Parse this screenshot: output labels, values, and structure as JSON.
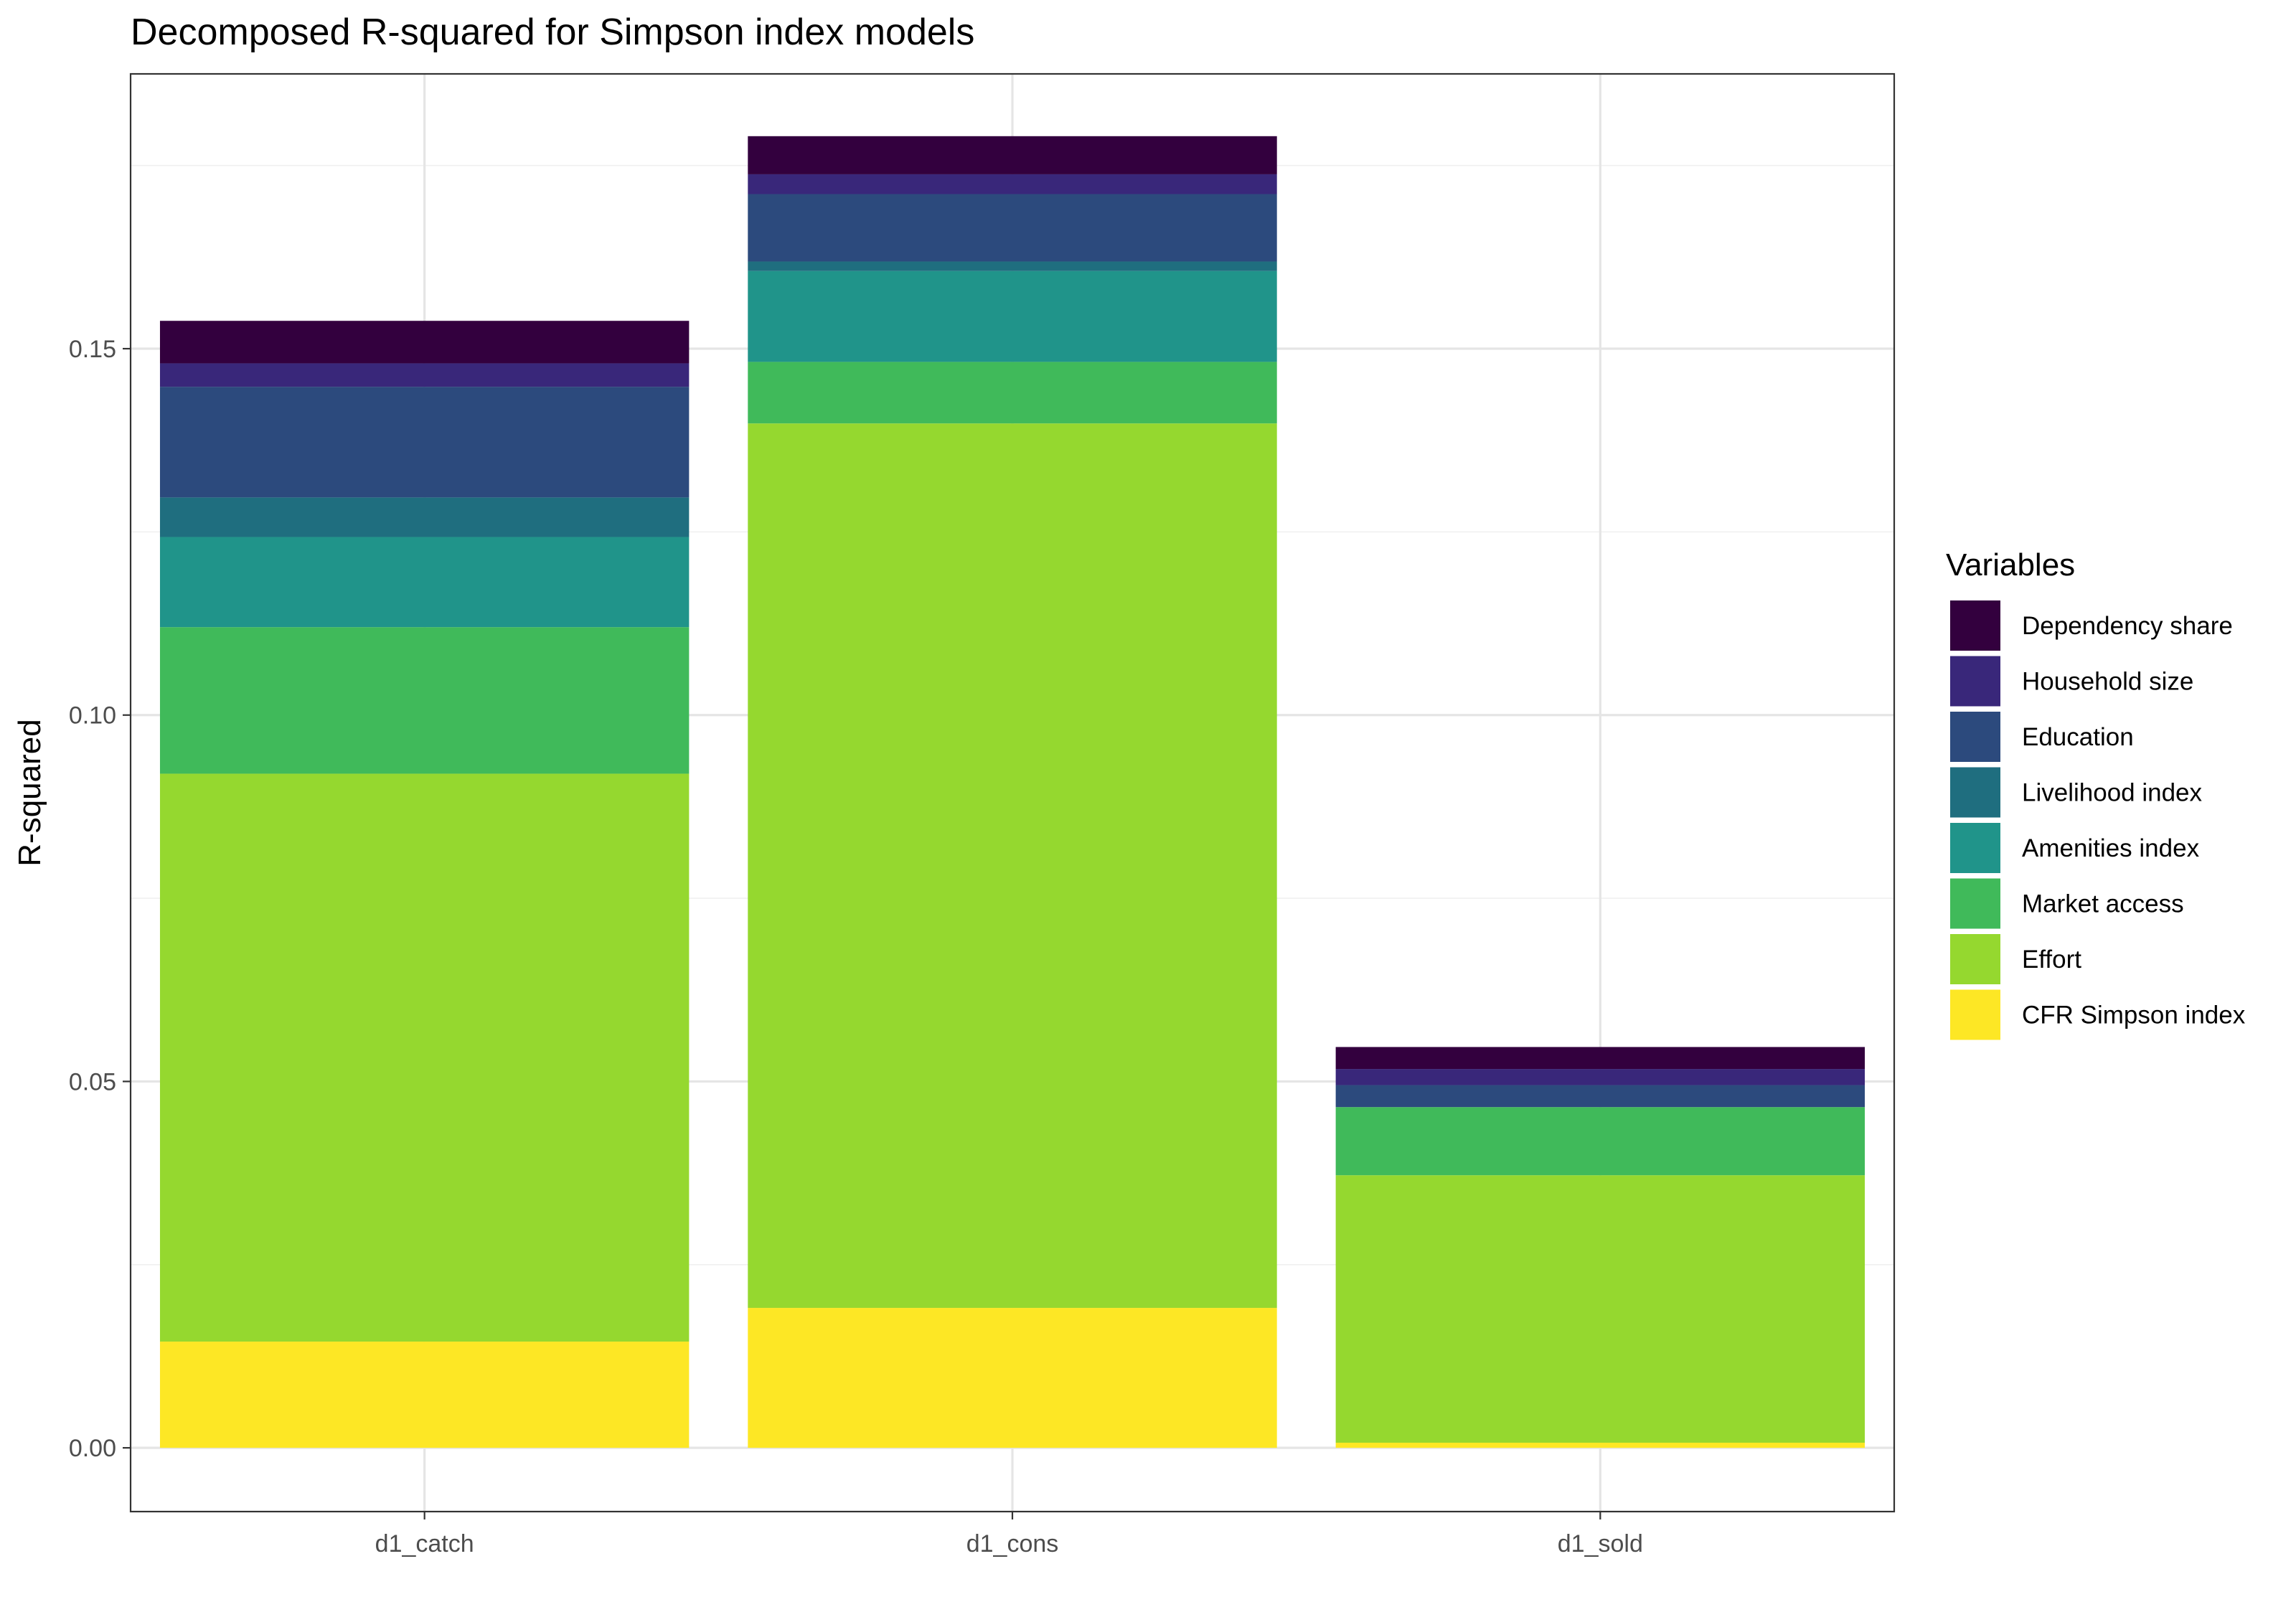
{
  "chart_data": {
    "type": "bar",
    "stacked": true,
    "title": "Decomposed R-squared for Simpson index models",
    "xlabel": "",
    "ylabel": "R-squared",
    "categories": [
      "d1_catch",
      "d1_cons",
      "d1_sold"
    ],
    "ylim": [
      -0.0087,
      0.1875
    ],
    "y_ticks": [
      0.0,
      0.05,
      0.1,
      0.15
    ],
    "y_tick_labels": [
      "0.00",
      "0.05",
      "0.10",
      "0.15"
    ],
    "grid": true,
    "legend": {
      "title": "Variables",
      "position": "right"
    },
    "series": [
      {
        "name": "CFR Simpson index",
        "color": "#FDE725",
        "values": [
          0.0145,
          0.0191,
          0.0007
        ]
      },
      {
        "name": "Effort",
        "color": "#95D82F",
        "values": [
          0.0775,
          0.1207,
          0.0365
        ]
      },
      {
        "name": "Market access",
        "color": "#40BA5A",
        "values": [
          0.02,
          0.0084,
          0.0093
        ]
      },
      {
        "name": "Amenities index",
        "color": "#20948A",
        "values": [
          0.0123,
          0.0124,
          0.0
        ]
      },
      {
        "name": "Livelihood index",
        "color": "#1F6E7F",
        "values": [
          0.0054,
          0.0013,
          0.0
        ]
      },
      {
        "name": "Education",
        "color": "#2C4A7D",
        "values": [
          0.0151,
          0.0092,
          0.003
        ]
      },
      {
        "name": "Household size",
        "color": "#39277A",
        "values": [
          0.0032,
          0.0027,
          0.0022
        ]
      },
      {
        "name": "Dependency share",
        "color": "#33003E",
        "values": [
          0.0058,
          0.0052,
          0.003
        ]
      }
    ]
  }
}
